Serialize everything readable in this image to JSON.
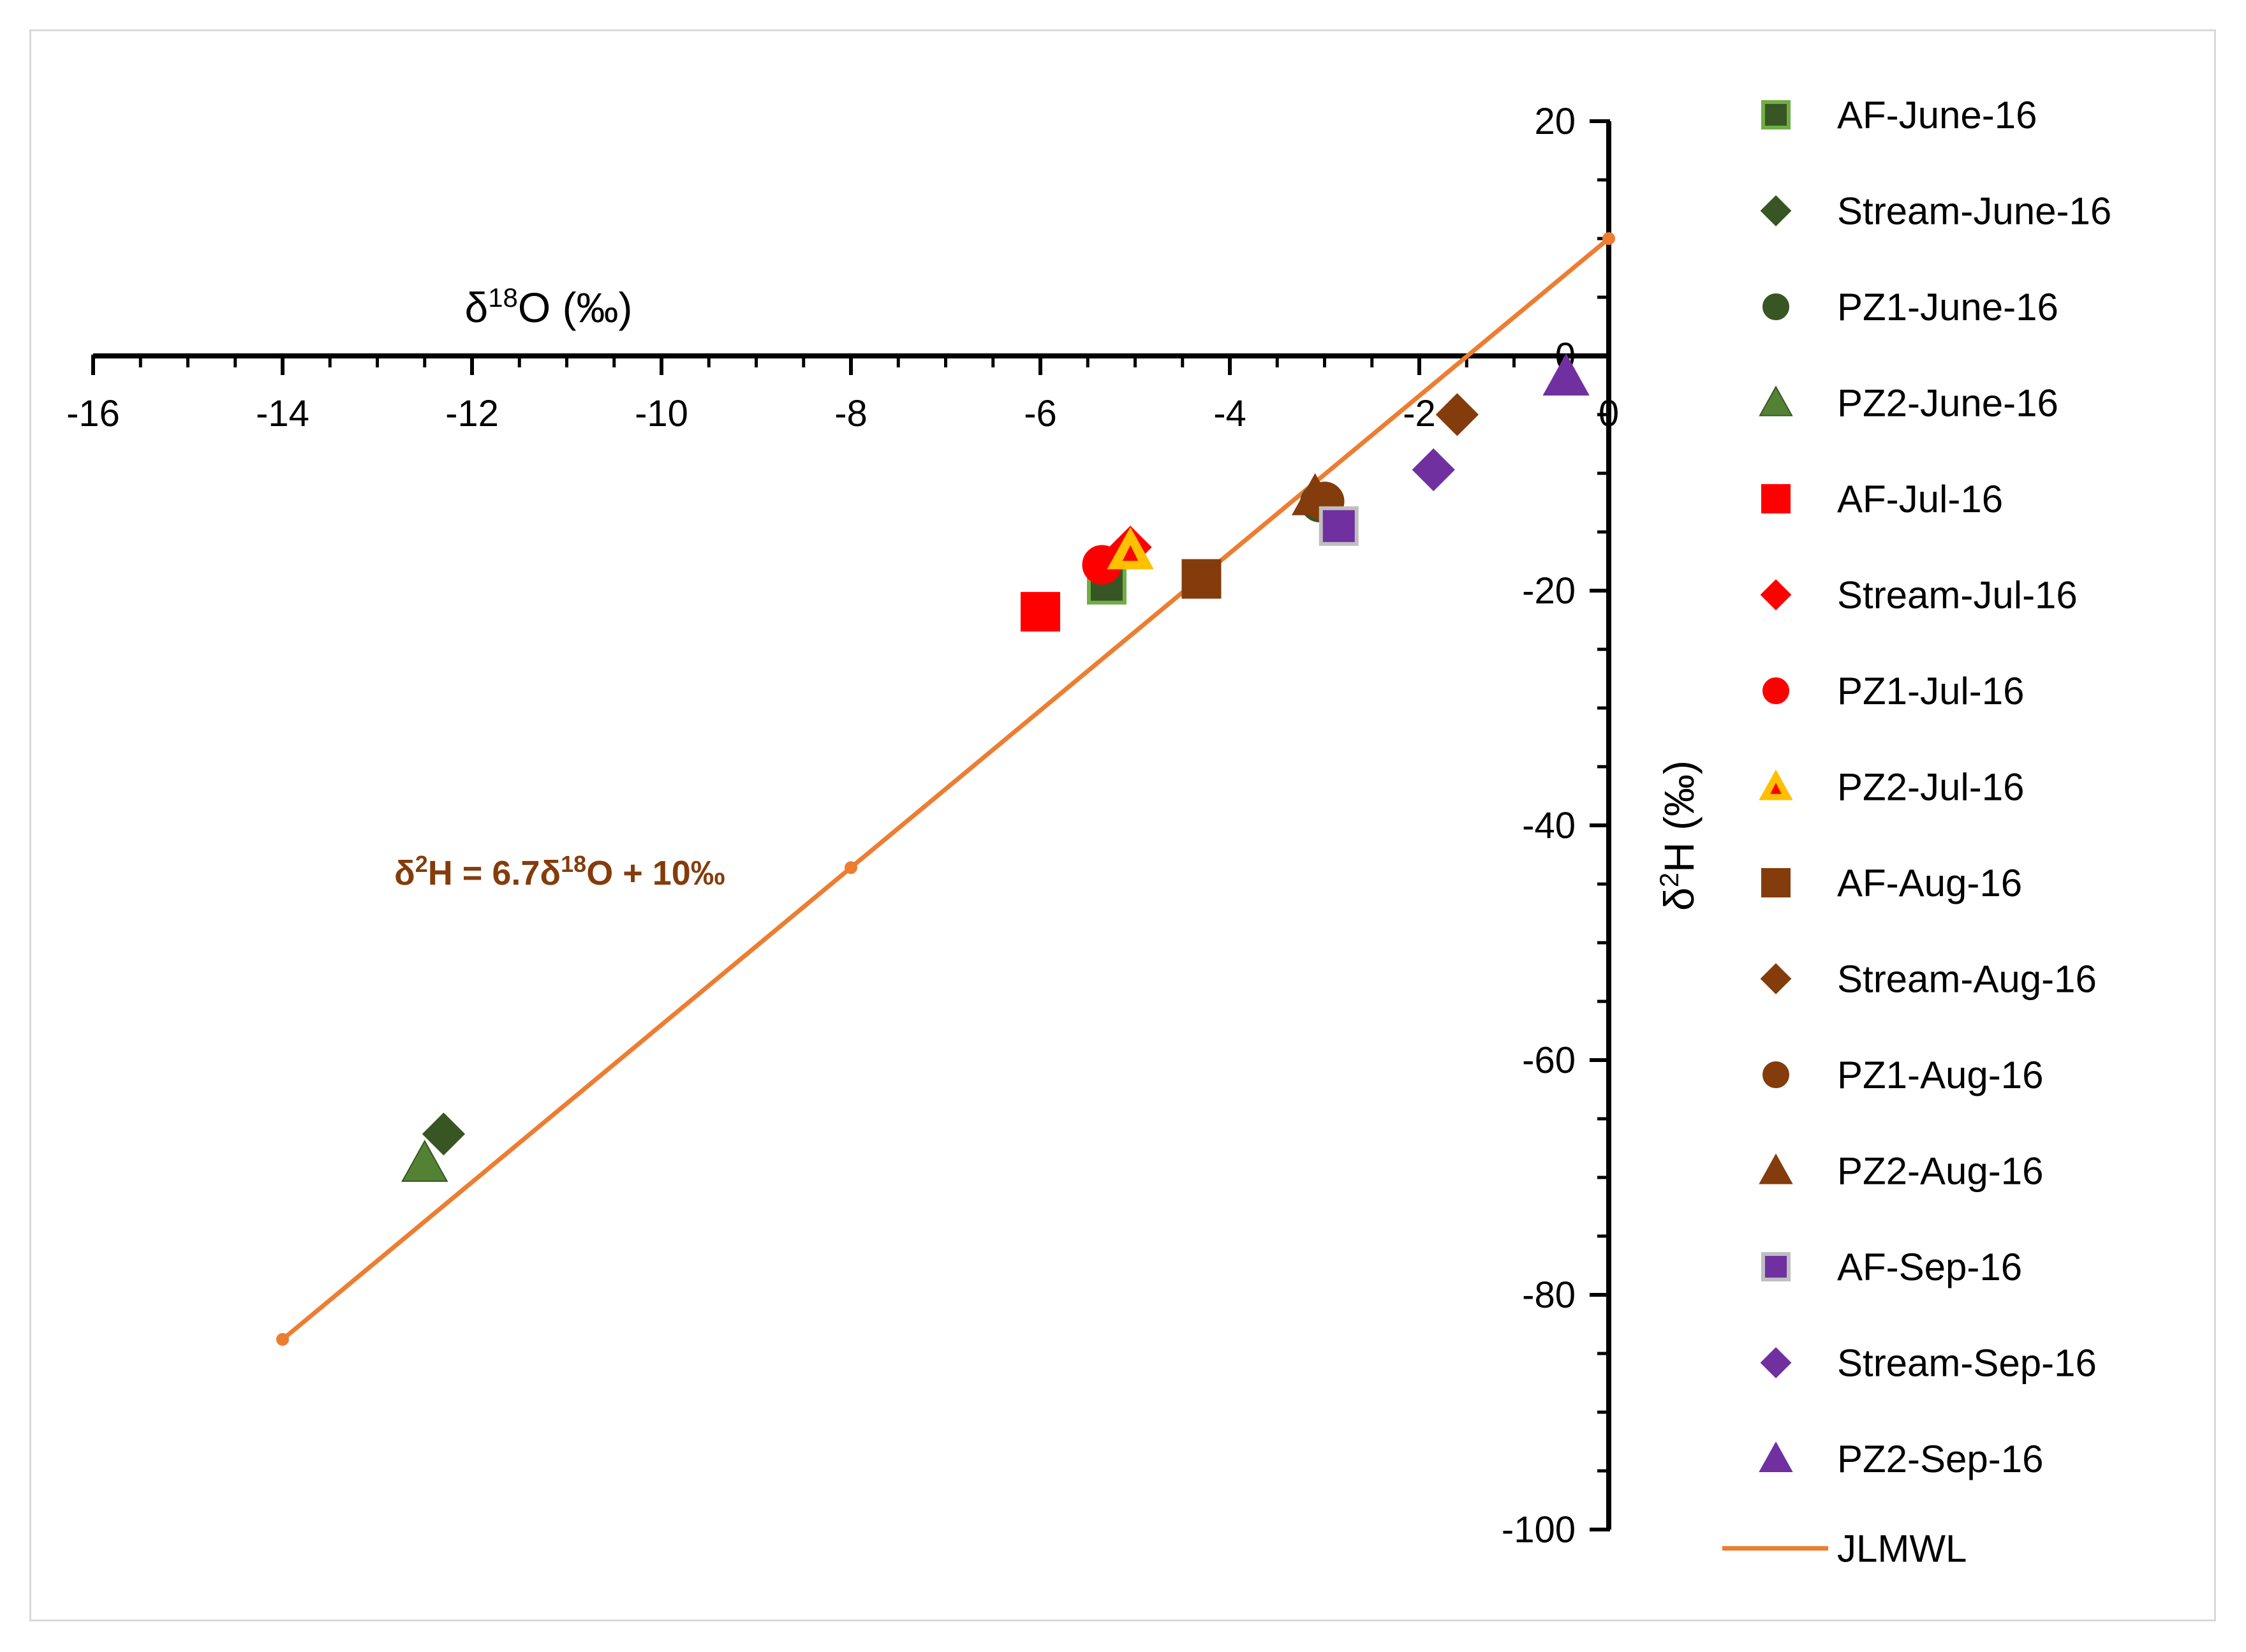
{
  "chart_data": {
    "type": "scatter",
    "title": "",
    "xlabel": "δ18O (‰)",
    "xlabel_main": "δ",
    "xlabel_sup": "18",
    "xlabel_rest": "O (‰)",
    "ylabel": "δ2H (‰)",
    "ylabel_main": "δ",
    "ylabel_sup": "2",
    "ylabel_rest": "H (‰)",
    "xlim": [
      -16,
      0
    ],
    "ylim": [
      -100,
      20
    ],
    "x_ticks": [
      -16,
      -14,
      -12,
      -10,
      -8,
      -6,
      -4,
      -2,
      0
    ],
    "y_ticks": [
      -100,
      -80,
      -60,
      -40,
      -20,
      0,
      20
    ],
    "x_tick_labels": [
      "-16",
      "-14",
      "-12",
      "-10",
      "-8",
      "-6",
      "-4",
      "-2",
      "0"
    ],
    "y_tick_labels": [
      "-100",
      "-80",
      "-60",
      "-40",
      "-20",
      "0",
      "20"
    ],
    "legend_position": "right",
    "series": [
      {
        "name": "AF-June-16",
        "marker": "square",
        "color": "#375623",
        "edge": "#70ad47",
        "points": [
          [
            -5.3,
            -19.5
          ]
        ]
      },
      {
        "name": "Stream-June-16",
        "marker": "diamond",
        "color": "#375623",
        "edge": "#375623",
        "points": [
          [
            -12.3,
            -66.3
          ]
        ]
      },
      {
        "name": "PZ1-June-16",
        "marker": "circle",
        "color": "#375623",
        "edge": "#375623",
        "points": [
          [
            -3.05,
            -12.5
          ]
        ]
      },
      {
        "name": "PZ2-June-16",
        "marker": "triangle",
        "color": "#548235",
        "edge": "#375623",
        "points": [
          [
            -12.5,
            -68.8
          ]
        ]
      },
      {
        "name": "AF-Jul-16",
        "marker": "square",
        "color": "#ff0000",
        "edge": "#ff0000",
        "points": [
          [
            -6.0,
            -21.8
          ]
        ]
      },
      {
        "name": "Stream-Jul-16",
        "marker": "diamond",
        "color": "#ff0000",
        "edge": "#ff0000",
        "points": [
          [
            -5.05,
            -16.3
          ]
        ]
      },
      {
        "name": "PZ1-Jul-16",
        "marker": "circle",
        "color": "#ff0000",
        "edge": "#ff0000",
        "points": [
          [
            -5.35,
            -17.8
          ]
        ]
      },
      {
        "name": "PZ2-Jul-16",
        "marker": "triangle-dot",
        "color": "#ffc000",
        "edge": "#ffc000",
        "points": [
          [
            -5.05,
            -16.6
          ]
        ]
      },
      {
        "name": "AF-Aug-16",
        "marker": "square",
        "color": "#843c0c",
        "edge": "#843c0c",
        "points": [
          [
            -4.3,
            -19.0
          ]
        ]
      },
      {
        "name": "Stream-Aug-16",
        "marker": "diamond",
        "color": "#843c0c",
        "edge": "#843c0c",
        "points": [
          [
            -1.6,
            -5.0
          ]
        ]
      },
      {
        "name": "PZ1-Aug-16",
        "marker": "circle",
        "color": "#843c0c",
        "edge": "#843c0c",
        "points": [
          [
            -3.0,
            -12.4
          ]
        ]
      },
      {
        "name": "PZ2-Aug-16",
        "marker": "triangle",
        "color": "#843c0c",
        "edge": "#843c0c",
        "points": [
          [
            -3.1,
            -12.0
          ]
        ]
      },
      {
        "name": "AF-Sep-16",
        "marker": "square",
        "color": "#7030a0",
        "edge": "#bfbfbf",
        "points": [
          [
            -2.85,
            -14.5
          ]
        ]
      },
      {
        "name": "Stream-Sep-16",
        "marker": "diamond",
        "color": "#7030a0",
        "edge": "#7030a0",
        "points": [
          [
            -1.85,
            -9.7
          ]
        ]
      },
      {
        "name": "PZ2-Sep-16",
        "marker": "triangle",
        "color": "#7030a0",
        "edge": "#7030a0",
        "points": [
          [
            -0.45,
            -1.8
          ]
        ]
      }
    ],
    "line": {
      "name": "JLMWL",
      "color": "#ed7d31",
      "points": [
        [
          -14,
          -83.8
        ],
        [
          -8,
          -43.6
        ],
        [
          0,
          10
        ]
      ]
    },
    "annotation": {
      "text_main": "δ",
      "text_sup1": "2",
      "text_mid": "H = 6.7δ",
      "text_sup2": "18",
      "text_end": "O + 10‰",
      "full": "δ2H = 6.7δ18O + 10‰",
      "anchor_data": [
        -14.3,
        -43.6
      ]
    }
  }
}
